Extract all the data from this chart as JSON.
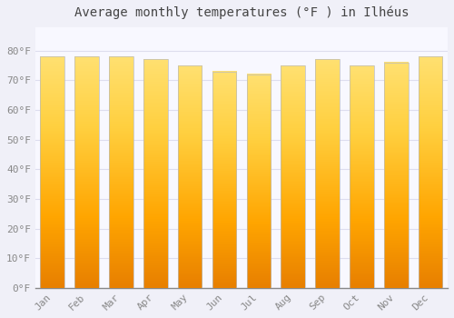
{
  "title": "Average monthly temperatures (°F ) in Ilhéus",
  "months": [
    "Jan",
    "Feb",
    "Mar",
    "Apr",
    "May",
    "Jun",
    "Jul",
    "Aug",
    "Sep",
    "Oct",
    "Nov",
    "Dec"
  ],
  "values": [
    78,
    78,
    78,
    77,
    75,
    73,
    72,
    75,
    77,
    75,
    76,
    78
  ],
  "bar_color_main": "#FFAA00",
  "bar_color_light": "#FFD060",
  "bar_edge_color": "#BBBBBB",
  "background_color": "#F0F0F8",
  "plot_bg_color": "#F8F8FF",
  "grid_color": "#DDDDEE",
  "tick_label_color": "#888888",
  "title_color": "#444444",
  "ylim": [
    0,
    88
  ],
  "yticks": [
    0,
    10,
    20,
    30,
    40,
    50,
    60,
    70,
    80
  ],
  "ylabel_suffix": "°F",
  "title_fontsize": 10,
  "tick_fontsize": 8,
  "bar_width": 0.7
}
